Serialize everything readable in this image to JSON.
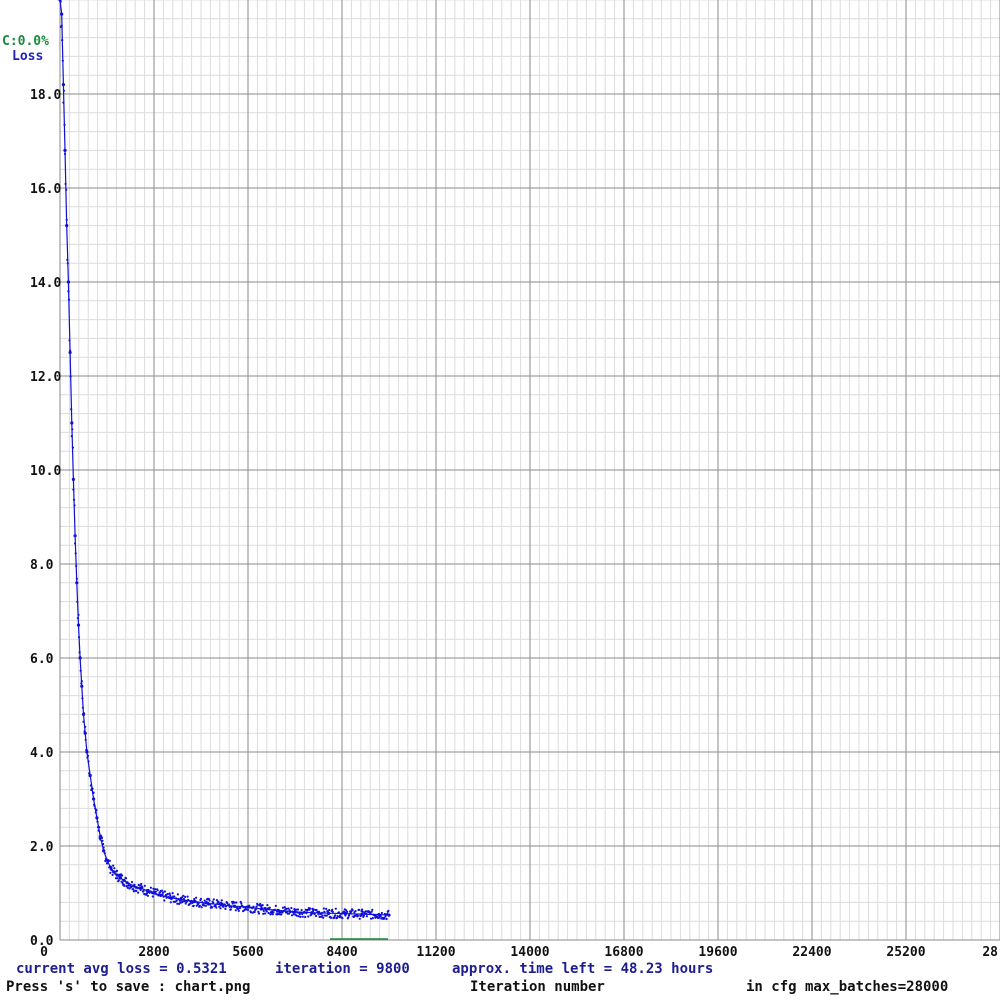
{
  "legend": {
    "accuracy_label": "C:0.0%",
    "loss_label": "Loss"
  },
  "status": {
    "current_avg_loss": "current avg loss = 0.5321",
    "iteration": "iteration = 9800",
    "time_left": "approx. time left = 48.23 hours",
    "save_hint": "Press 's' to save : chart.png",
    "max_batches": "in cfg max_batches=28000"
  },
  "colors": {
    "loss": "#1010d8",
    "accuracy": "#1a8a3c",
    "grid_major": "#8a8a8a",
    "grid_minor": "#dcdcdc"
  },
  "chart_data": {
    "type": "scatter",
    "xlabel": "Iteration number",
    "ylabel": "",
    "xlim": [
      0,
      28000
    ],
    "ylim": [
      0,
      20
    ],
    "x_ticks": [
      "0",
      "2800",
      "5600",
      "8400",
      "11200",
      "14000",
      "16800",
      "19600",
      "22400",
      "25200",
      "28"
    ],
    "y_ticks": [
      "0.0",
      "2.0",
      "4.0",
      "6.0",
      "8.0",
      "10.0",
      "12.0",
      "14.0",
      "16.0",
      "18.0"
    ],
    "grid": true,
    "series": [
      {
        "name": "Loss",
        "color": "#1010d8",
        "x": [
          0,
          50,
          100,
          150,
          200,
          250,
          300,
          350,
          400,
          450,
          500,
          550,
          600,
          650,
          700,
          750,
          800,
          900,
          1000,
          1100,
          1200,
          1300,
          1400,
          1500,
          1600,
          1700,
          1800,
          1900,
          2000,
          2200,
          2400,
          2600,
          2800,
          3000,
          3300,
          3600,
          4000,
          4400,
          4800,
          5200,
          5600,
          6000,
          6500,
          7000,
          7500,
          8000,
          8500,
          9000,
          9500,
          9800
        ],
        "y": [
          20.0,
          19.7,
          18.2,
          16.8,
          15.2,
          14.0,
          12.5,
          11.0,
          9.8,
          8.6,
          7.6,
          6.7,
          6.0,
          5.4,
          4.8,
          4.4,
          4.0,
          3.5,
          3.0,
          2.6,
          2.2,
          1.9,
          1.7,
          1.55,
          1.45,
          1.38,
          1.32,
          1.27,
          1.22,
          1.15,
          1.1,
          1.05,
          1.0,
          0.95,
          0.9,
          0.86,
          0.82,
          0.78,
          0.75,
          0.72,
          0.7,
          0.66,
          0.63,
          0.6,
          0.58,
          0.57,
          0.56,
          0.55,
          0.54,
          0.53
        ]
      }
    ]
  }
}
